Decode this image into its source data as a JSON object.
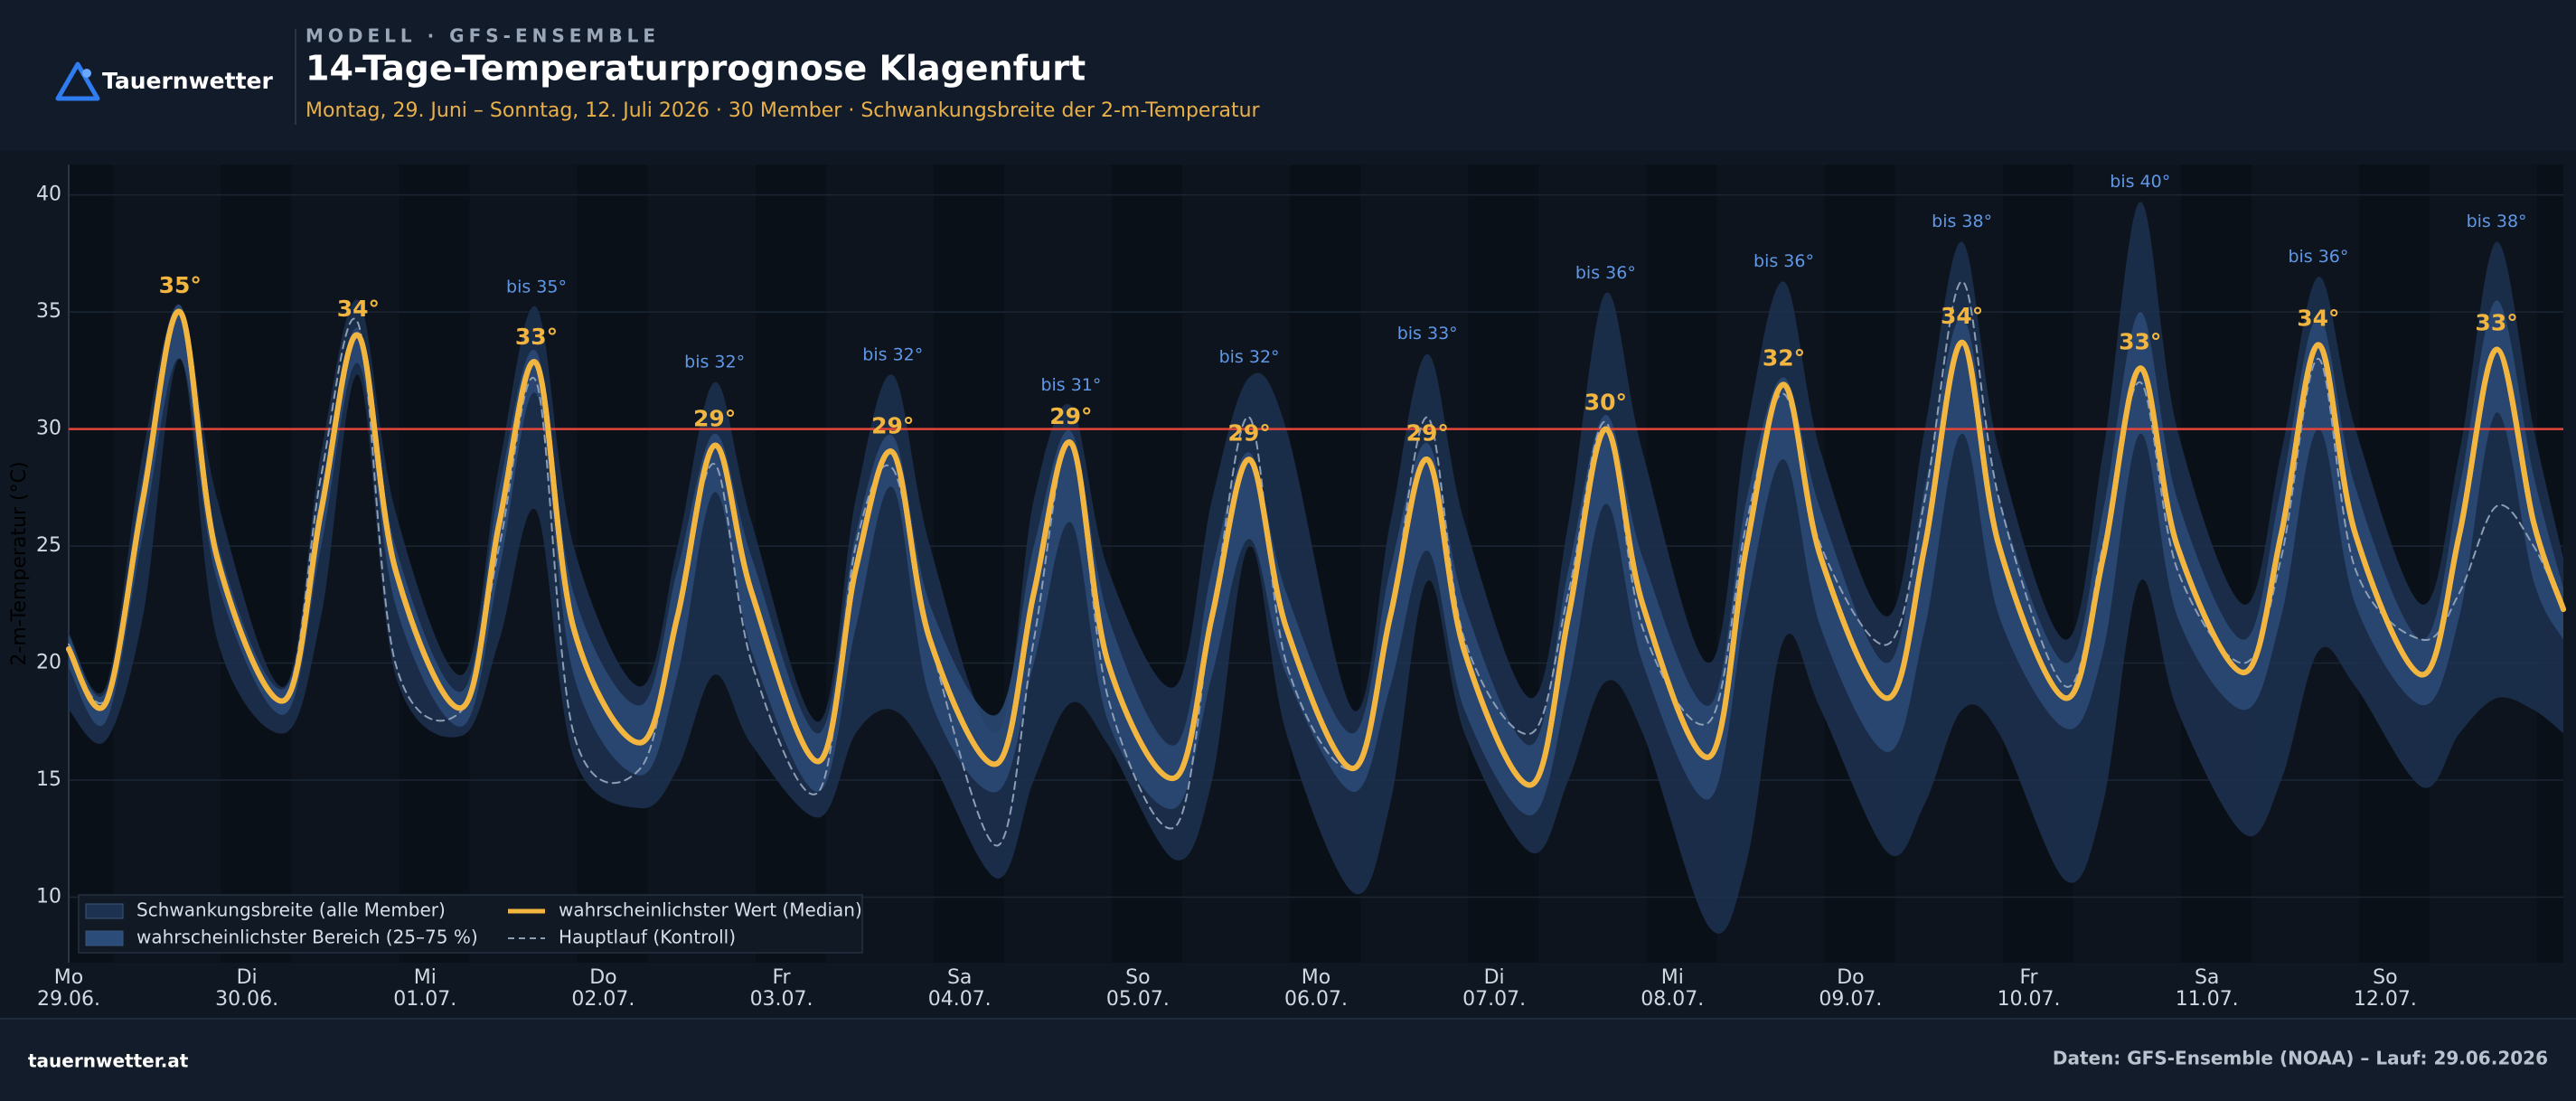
{
  "header": {
    "brand": "Tauernwetter",
    "kicker": "MODELL · GFS-ENSEMBLE",
    "title": "14-Tage-Temperaturprognose Klagenfurt",
    "subtitle": "Montag, 29. Juni – Sonntag, 12. Juli 2026 · 30 Member · Schwankungsbreite der 2-m-Temperatur"
  },
  "chart_data": {
    "type": "line",
    "y_label": "2-m-Temperatur (°C)",
    "x": [
      0,
      5,
      10,
      15,
      20,
      29,
      34,
      39,
      44,
      53,
      58,
      63,
      68,
      77,
      82,
      87,
      92,
      101,
      106,
      111,
      116,
      125,
      130,
      135,
      140,
      149,
      154,
      159,
      164,
      173,
      178,
      183,
      188,
      197,
      202,
      207,
      212,
      221,
      226,
      231,
      236,
      245,
      250,
      255,
      260,
      269,
      274,
      279,
      284,
      293,
      298,
      303,
      308,
      317,
      322,
      327,
      332,
      336
    ],
    "xlim": [
      0,
      336
    ],
    "xticks": [
      {
        "value": 0,
        "label": "Mo\n29.06."
      },
      {
        "value": 24,
        "label": "Di\n30.06."
      },
      {
        "value": 48,
        "label": "Mi\n01.07."
      },
      {
        "value": 72,
        "label": "Do\n02.07."
      },
      {
        "value": 96,
        "label": "Fr\n03.07."
      },
      {
        "value": 120,
        "label": "Sa\n04.07."
      },
      {
        "value": 144,
        "label": "So\n05.07."
      },
      {
        "value": 168,
        "label": "Mo\n06.07."
      },
      {
        "value": 192,
        "label": "Di\n07.07."
      },
      {
        "value": 216,
        "label": "Mi\n08.07."
      },
      {
        "value": 240,
        "label": "Do\n09.07."
      },
      {
        "value": 264,
        "label": "Fr\n10.07."
      },
      {
        "value": 288,
        "label": "Sa\n11.07."
      },
      {
        "value": 312,
        "label": "So\n12.07."
      }
    ],
    "ylim": [
      7.2,
      41.3
    ],
    "yticks": [
      10,
      15,
      20,
      25,
      30,
      35,
      40
    ],
    "grid": true,
    "reference_line": 30,
    "legend": "lower left",
    "series": [
      {
        "name": "Schwankungsbreite (alle Member)",
        "type": "band",
        "color": "#1d3150",
        "upper": [
          21.3,
          19,
          29,
          35.3,
          27,
          19,
          29,
          35.5,
          26.5,
          19.5,
          28.5,
          35.2,
          25,
          19,
          25,
          32,
          26,
          17.5,
          27,
          32.3,
          25,
          17,
          27,
          31,
          24,
          19,
          27,
          32.2,
          30,
          18,
          26,
          33.2,
          26,
          18.5,
          26,
          35.8,
          29,
          20,
          30,
          36.3,
          29,
          22,
          30,
          38,
          29,
          21,
          29,
          39.7,
          30,
          22.5,
          29,
          36.5,
          30,
          22.5,
          29,
          38,
          30,
          24.5
        ],
        "lower": [
          18,
          16.7,
          22,
          33,
          21,
          17,
          22,
          32.3,
          19.5,
          16.9,
          21,
          26.5,
          16,
          13.8,
          15.5,
          19.5,
          16.5,
          13.4,
          17,
          18,
          16,
          10.8,
          15,
          18.3,
          16.5,
          11.6,
          15,
          25,
          17,
          10.2,
          14,
          23.5,
          17,
          11.9,
          15,
          19.2,
          17,
          8.7,
          11.5,
          21,
          18,
          11.9,
          14,
          18,
          17,
          10.7,
          14,
          23.5,
          18,
          12.7,
          15,
          20.5,
          19,
          14.7,
          17,
          18.5,
          18,
          17
        ],
        "upper_value_labels": [
          null,
          null,
          null,
          null,
          null,
          null,
          null,
          null,
          null,
          null,
          null,
          "bis 35°",
          null,
          null,
          null,
          "bis 32°",
          null,
          null,
          null,
          "bis 32°",
          null,
          null,
          null,
          "bis 31°",
          null,
          null,
          null,
          "bis 32°",
          null,
          null,
          null,
          "bis 33°",
          null,
          null,
          null,
          "bis 36°",
          null,
          null,
          null,
          "bis 36°",
          null,
          null,
          null,
          "bis 38°",
          null,
          null,
          null,
          "bis 40°",
          null,
          null,
          null,
          "bis 36°",
          null,
          null,
          null,
          "bis 38°",
          null,
          null
        ]
      },
      {
        "name": "wahrscheinlichster Bereich (25–75 %)",
        "type": "band",
        "color": "#2b4b78",
        "upper": [
          21.2,
          18.8,
          28,
          35.3,
          25.2,
          18.9,
          27.5,
          34.3,
          25,
          18.8,
          27.5,
          33.3,
          23,
          18.2,
          24,
          29.8,
          24.5,
          17,
          25.5,
          29.7,
          22.5,
          17.8,
          25,
          29.9,
          22,
          16.5,
          24,
          29,
          23,
          17,
          24,
          29.4,
          22.5,
          16.5,
          24,
          30.6,
          24.5,
          18.2,
          27,
          32.2,
          26.5,
          20,
          27.5,
          34.8,
          27,
          20,
          26.5,
          35,
          27,
          21,
          27.5,
          34.8,
          27.5,
          21,
          27.5,
          35.5,
          28,
          23.2
        ],
        "lower": [
          19.8,
          17.5,
          25.5,
          33,
          23.5,
          17.8,
          25,
          32.8,
          22.5,
          17.3,
          24,
          31.5,
          19.5,
          15.2,
          19.5,
          27.3,
          20.5,
          14.5,
          21.5,
          27.5,
          18.5,
          14.5,
          20,
          26,
          17.5,
          13.8,
          19.5,
          25.3,
          19.5,
          14.5,
          19,
          24.8,
          18,
          13.5,
          19,
          26.8,
          20,
          14.2,
          22.5,
          28.7,
          21.5,
          16.2,
          21.5,
          29.8,
          22,
          17.2,
          20.5,
          29.8,
          22,
          18,
          22,
          30,
          22.5,
          18.2,
          22,
          30.7,
          23.5,
          21
        ]
      },
      {
        "name": "wahrscheinlichster Wert (Median)",
        "type": "line",
        "color": "#f2b640",
        "values": [
          20.6,
          18.3,
          27,
          35,
          24.5,
          18.4,
          26.5,
          34,
          24,
          18.1,
          26,
          32.8,
          21.5,
          16.6,
          22,
          29.3,
          23,
          15.8,
          24,
          29,
          21,
          15.7,
          23,
          29.4,
          20,
          15.1,
          22,
          28.7,
          21.5,
          15.5,
          22,
          28.7,
          20.5,
          14.8,
          22,
          30,
          22.5,
          16,
          25,
          31.9,
          24.5,
          18.5,
          25,
          33.7,
          25,
          18.5,
          24.5,
          32.6,
          25,
          19.6,
          25.5,
          33.6,
          25.5,
          19.5,
          25.5,
          33.4,
          26,
          22.3
        ],
        "value_labels": [
          null,
          null,
          null,
          "35°",
          null,
          null,
          null,
          "34°",
          null,
          null,
          null,
          "33°",
          null,
          null,
          null,
          "29°",
          null,
          null,
          null,
          "29°",
          null,
          null,
          null,
          "29°",
          null,
          null,
          null,
          "29°",
          null,
          null,
          null,
          "29°",
          null,
          null,
          null,
          "30°",
          null,
          null,
          null,
          "32°",
          null,
          null,
          null,
          "34°",
          null,
          null,
          null,
          "33°",
          null,
          null,
          null,
          "34°",
          null,
          null,
          null,
          "33°",
          null,
          null
        ]
      },
      {
        "name": "Hauptlauf (Kontroll)",
        "type": "line",
        "dash": true,
        "color": "#8d9db4",
        "values": [
          20.8,
          18.5,
          27,
          35,
          24.5,
          18.5,
          28,
          34.5,
          20,
          18,
          25,
          32,
          17,
          15.5,
          22,
          28.5,
          20,
          14.5,
          25,
          28.3,
          21,
          12.2,
          21,
          29.5,
          18.5,
          13,
          22,
          30.5,
          20,
          15.5,
          22,
          30.5,
          21,
          17,
          23,
          30.3,
          21.5,
          17.5,
          26,
          31.5,
          25,
          20.8,
          27,
          36.3,
          27,
          19,
          25,
          32,
          24,
          20,
          24.5,
          33,
          24,
          21,
          23,
          26.7,
          25,
          22.2
        ]
      }
    ]
  },
  "footer": {
    "site": "tauernwetter.at",
    "source": "Daten: GFS-Ensemble (NOAA) – Lauf: 29.06.2026"
  }
}
